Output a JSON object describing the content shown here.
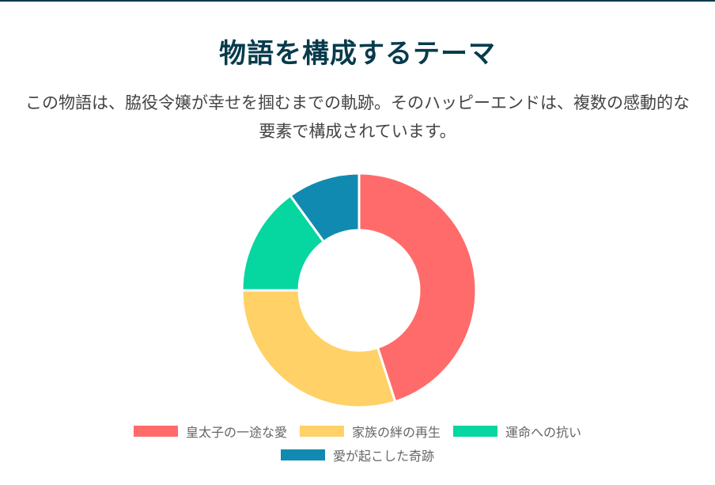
{
  "page": {
    "title": "物語を構成するテーマ",
    "description": "この物語は、脇役令嬢が幸せを掴むまでの軌跡。そのハッピーエンドは、複数の感動的な要素で構成されています。"
  },
  "chart_data": {
    "type": "pie",
    "variant": "doughnut",
    "categories": [
      "皇太子の一途な愛",
      "家族の絆の再生",
      "運命への抗い",
      "愛が起こした奇跡"
    ],
    "values": [
      45,
      30,
      15,
      10
    ],
    "colors": [
      "#ff6b6b",
      "#ffd166",
      "#06d6a0",
      "#118ab2"
    ],
    "legend_position": "bottom"
  }
}
